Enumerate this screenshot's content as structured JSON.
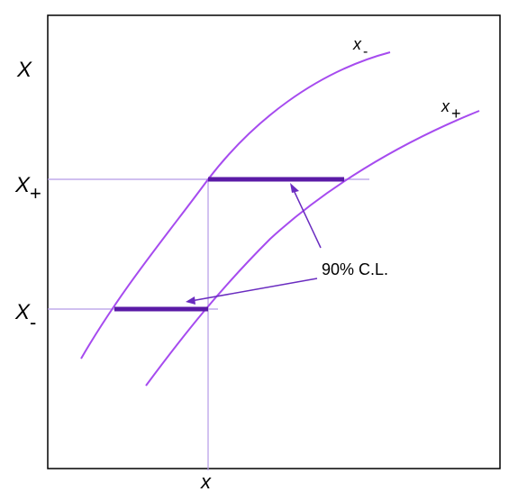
{
  "labels": {
    "y_upper": "X",
    "y_upper_sub": "+",
    "y_lower": "X",
    "y_lower_sub": "-",
    "y_axis_top": "X",
    "x_axis": "x",
    "curve_minus": "x",
    "curve_minus_sub": "-",
    "curve_plus": "x",
    "curve_plus_sub": "+",
    "annotation": "90% C.L."
  },
  "colors": {
    "curve": "#a64bef",
    "belt_segment": "#5a1aa6",
    "guide_line": "#b49ae6",
    "arrow": "#6a2cc0",
    "frame": "#000000"
  }
}
